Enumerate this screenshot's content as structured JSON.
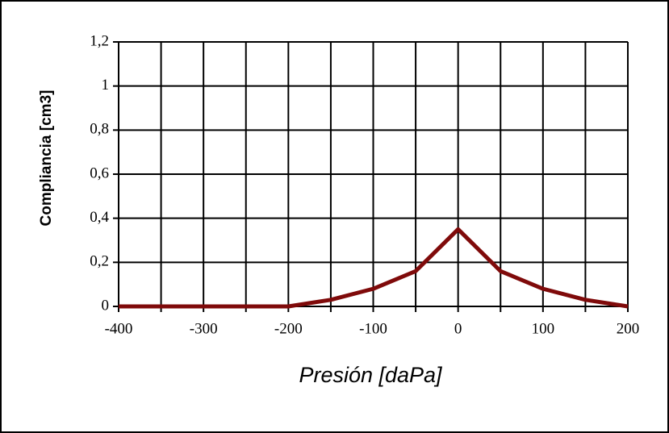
{
  "chart_data": {
    "type": "line",
    "x_label": "Presión [daPa]",
    "y_label": "Compliancia [cm3]",
    "x": [
      -400,
      -350,
      -300,
      -250,
      -200,
      -150,
      -100,
      -50,
      0,
      50,
      100,
      150,
      200
    ],
    "series": [
      {
        "name": "Compliancia",
        "color": "#7f0a0a",
        "values": [
          0,
          0,
          0,
          0,
          0,
          0.03,
          0.08,
          0.16,
          0.35,
          0.16,
          0.08,
          0.03,
          0
        ]
      }
    ],
    "xlim": [
      -400,
      200
    ],
    "xticks": [
      -400,
      -300,
      -200,
      -100,
      0,
      100,
      200
    ],
    "xminorticks": [
      -350,
      -250,
      -150,
      -50,
      50,
      150
    ],
    "ylim": [
      0,
      1.2
    ],
    "yticks": [
      0,
      {
        "value": 0.2,
        "label": "0,2"
      },
      {
        "value": 0.4,
        "label": "0,4"
      },
      {
        "value": 0.6,
        "label": "0,6"
      },
      {
        "value": 0.8,
        "label": "0,8"
      },
      1,
      {
        "value": 1.2,
        "label": "1,2"
      }
    ],
    "grid": true
  }
}
